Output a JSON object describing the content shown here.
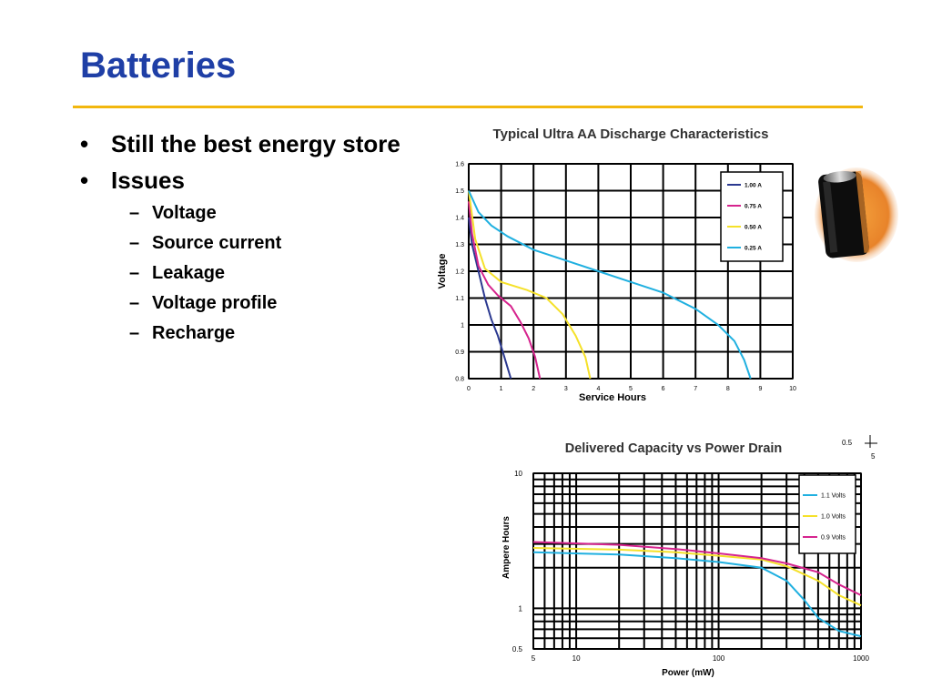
{
  "slide": {
    "title": "Batteries",
    "bullets": [
      {
        "text": "Still the best energy store"
      },
      {
        "text": "Issues",
        "sub": [
          "Voltage",
          "Source current",
          "Leakage",
          "Voltage profile",
          "Recharge"
        ]
      }
    ]
  },
  "battery_icon": "aa-battery-icon",
  "colors": {
    "title": "#1f3fa6",
    "rule": "#f2b70e",
    "navy": "#2b3990",
    "magenta": "#d6248e",
    "yellow": "#f5e12a",
    "cyan": "#20b0e0"
  },
  "chart_data": [
    {
      "type": "line",
      "title": "Typical Ultra AA Discharge Characteristics",
      "xlabel": "Service Hours",
      "ylabel": "Voltage",
      "xlim": [
        0,
        10
      ],
      "ylim": [
        0.8,
        1.6
      ],
      "xticks": [
        "0",
        "1",
        "2",
        "3",
        "4",
        "5",
        "6",
        "7",
        "8",
        "9",
        "10"
      ],
      "yticks": [
        "0.8",
        "0.9",
        "1",
        "1.1",
        "1.2",
        "1.3",
        "1.4",
        "1.5",
        "1.6"
      ],
      "grid": true,
      "legend_position": "top-right",
      "series": [
        {
          "name": "1.00 A",
          "color": "#2b3990",
          "x": [
            0,
            0.1,
            0.3,
            0.5,
            0.7,
            0.9,
            1.1,
            1.3
          ],
          "y": [
            1.4,
            1.3,
            1.2,
            1.1,
            1.02,
            0.96,
            0.88,
            0.8
          ]
        },
        {
          "name": "0.75 A",
          "color": "#d6248e",
          "x": [
            0,
            0.1,
            0.3,
            0.6,
            0.9,
            1.3,
            1.6,
            1.85,
            2.05,
            2.2
          ],
          "y": [
            1.46,
            1.34,
            1.22,
            1.15,
            1.11,
            1.07,
            1.01,
            0.95,
            0.88,
            0.8
          ]
        },
        {
          "name": "0.50 A",
          "color": "#f5e12a",
          "x": [
            0,
            0.2,
            0.5,
            1.0,
            1.8,
            2.4,
            2.9,
            3.3,
            3.6,
            3.75
          ],
          "y": [
            1.5,
            1.32,
            1.21,
            1.16,
            1.13,
            1.1,
            1.04,
            0.96,
            0.88,
            0.8
          ]
        },
        {
          "name": "0.25 A",
          "color": "#20b0e0",
          "x": [
            0,
            0.3,
            0.7,
            1.2,
            2.0,
            3.0,
            4.0,
            5.0,
            6.0,
            7.0,
            7.7,
            8.2,
            8.5,
            8.7
          ],
          "y": [
            1.5,
            1.42,
            1.37,
            1.33,
            1.28,
            1.24,
            1.2,
            1.16,
            1.12,
            1.06,
            1.0,
            0.94,
            0.87,
            0.8
          ]
        }
      ]
    },
    {
      "type": "line",
      "title": "Delivered Capacity vs Power Drain",
      "xlabel": "Power (mW)",
      "ylabel": "Ampere Hours",
      "xscale": "log",
      "yscale": "log",
      "xlim": [
        5,
        1000
      ],
      "ylim": [
        0.5,
        10
      ],
      "xticks": [
        "5",
        "10",
        "100",
        "1000"
      ],
      "yticks": [
        "0.5",
        "1",
        "10"
      ],
      "grid": true,
      "legend_position": "top-right",
      "series": [
        {
          "name": "1.1 Volts",
          "color": "#20b0e0",
          "x": [
            5,
            20,
            50,
            100,
            200,
            300,
            400,
            500,
            700,
            1000
          ],
          "y": [
            2.6,
            2.5,
            2.35,
            2.2,
            2.0,
            1.6,
            1.15,
            0.85,
            0.68,
            0.62
          ]
        },
        {
          "name": "1.0 Volts",
          "color": "#f5e12a",
          "x": [
            5,
            20,
            50,
            100,
            200,
            300,
            500,
            700,
            1000
          ],
          "y": [
            2.8,
            2.72,
            2.6,
            2.45,
            2.3,
            2.05,
            1.6,
            1.25,
            1.05
          ]
        },
        {
          "name": "0.9 Volts",
          "color": "#d6248e",
          "x": [
            5,
            20,
            50,
            100,
            200,
            300,
            500,
            700,
            1000
          ],
          "y": [
            3.1,
            2.95,
            2.75,
            2.55,
            2.35,
            2.15,
            1.85,
            1.5,
            1.25
          ]
        }
      ],
      "annotations": [
        "0.5",
        "5"
      ]
    }
  ]
}
